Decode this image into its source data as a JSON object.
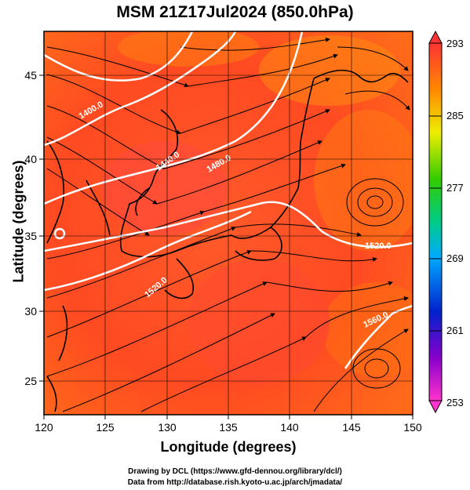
{
  "title": "MSM 21Z17Jul2024 (850.0hPa)",
  "x_axis": {
    "label": "Longitude (degrees)",
    "ticks": [
      "120",
      "125",
      "130",
      "135",
      "140",
      "145",
      "150"
    ]
  },
  "y_axis": {
    "label": "Latitude  (degrees)",
    "ticks": [
      "25",
      "30",
      "35",
      "40",
      "45"
    ]
  },
  "colorbar": {
    "labels": [
      "293",
      "285",
      "277",
      "269",
      "261",
      "253"
    ],
    "min": 253,
    "max": 293
  },
  "contours": [
    {
      "label": "1400.0"
    },
    {
      "label": "1440.0"
    },
    {
      "label": "1480.0"
    },
    {
      "label": "1520.0"
    },
    {
      "label": "1520.0"
    },
    {
      "label": "1560.0"
    }
  ],
  "credits": {
    "line1": "Drawing by DCL (https://www.gfd-dennou.org/library/dcl/)",
    "line2": "Data from http://database.rish.kyoto-u.ac.jp/arch/jmadata/"
  }
}
